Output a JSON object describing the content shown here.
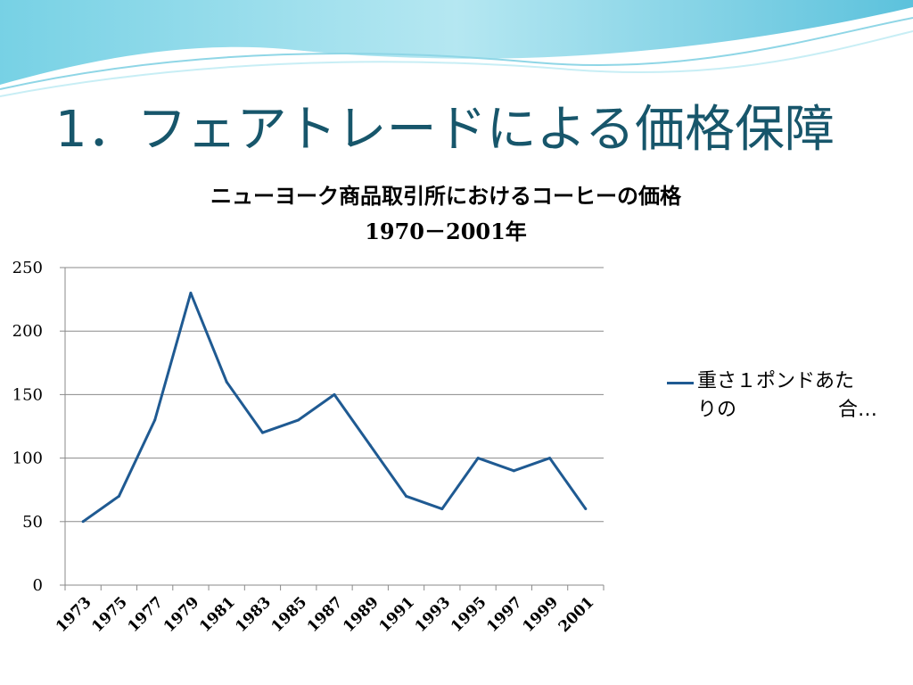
{
  "slide": {
    "title": "1．フェアトレードによる価格保障"
  },
  "theme": {
    "line_color": "#1f5a92",
    "title_color": "#17566b",
    "grid_color": "#8a8a8a"
  },
  "chart_data": {
    "type": "line",
    "title": "ニューヨーク商品取引所におけるコーヒーの価格",
    "subtitle": "1970－2001年",
    "x": [
      1973,
      1975,
      1977,
      1979,
      1981,
      1983,
      1985,
      1987,
      1989,
      1991,
      1993,
      1995,
      1997,
      1999,
      2001
    ],
    "series": [
      {
        "name": "重さ１ポンドあたりの　　　　合…",
        "values": [
          50,
          70,
          130,
          230,
          160,
          120,
          130,
          150,
          110,
          70,
          60,
          100,
          90,
          100,
          60
        ]
      }
    ],
    "ylim": [
      0,
      250
    ],
    "yticks": [
      0,
      50,
      100,
      150,
      200,
      250
    ],
    "xticks": [
      "1973",
      "1975",
      "1977",
      "1979",
      "1981",
      "1983",
      "1985",
      "1987",
      "1989",
      "1991",
      "1993",
      "1995",
      "1997",
      "1999",
      "2001"
    ],
    "grid": true,
    "legend_position": "right"
  },
  "legend": {
    "line1": "重さ１ポンドあた",
    "line2_left": "りの",
    "line2_right": "合…"
  }
}
